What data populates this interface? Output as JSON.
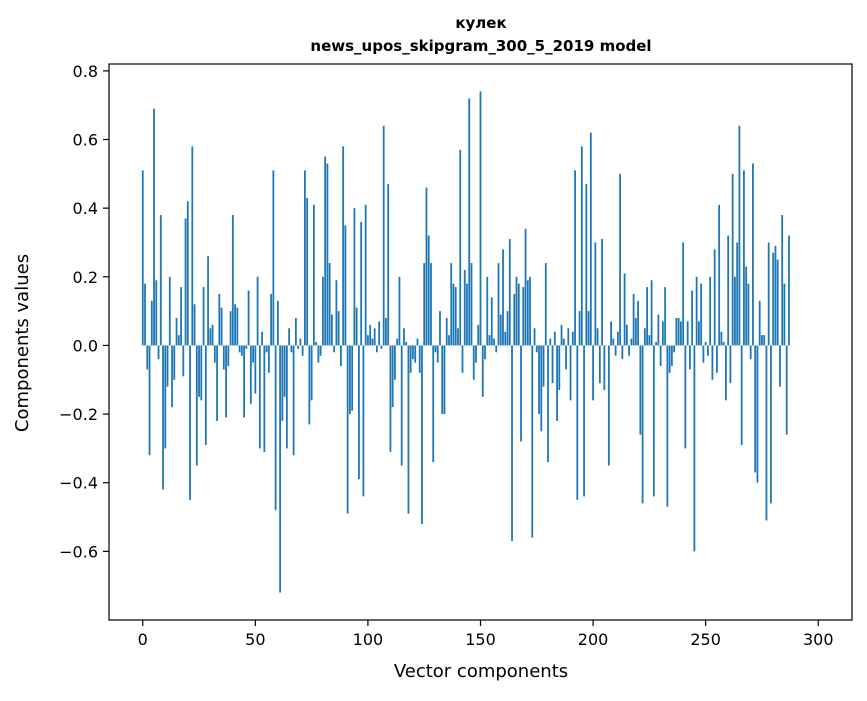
{
  "chart_data": {
    "type": "bar",
    "title": "кулек",
    "subtitle": "news_upos_skipgram_300_5_2019 model",
    "xlabel": "Vector components",
    "ylabel": "Components values",
    "xlim": [
      -15,
      315
    ],
    "ylim": [
      -0.8,
      0.82
    ],
    "x_ticks": [
      0,
      50,
      100,
      150,
      200,
      250,
      300
    ],
    "x_tick_labels": [
      "0",
      "50",
      "100",
      "150",
      "200",
      "250",
      "300"
    ],
    "y_ticks": [
      -0.6,
      -0.4,
      -0.2,
      0.0,
      0.2,
      0.4,
      0.6,
      0.8
    ],
    "y_tick_labels": [
      "−0.6",
      "−0.4",
      "−0.2",
      "0.0",
      "0.2",
      "0.4",
      "0.6",
      "0.8"
    ],
    "bar_color": "#1f77b4",
    "grid": false,
    "values": [
      0.51,
      0.18,
      -0.07,
      -0.32,
      0.13,
      0.69,
      0.19,
      -0.04,
      0.38,
      -0.42,
      -0.3,
      -0.12,
      0.2,
      -0.18,
      -0.1,
      0.08,
      0.03,
      0.17,
      -0.09,
      0.37,
      0.42,
      -0.45,
      0.58,
      0.12,
      -0.35,
      -0.15,
      -0.16,
      0.17,
      -0.29,
      0.26,
      0.05,
      0.06,
      -0.05,
      -0.22,
      0.15,
      0.11,
      -0.07,
      -0.21,
      -0.06,
      0.1,
      0.38,
      0.12,
      0.11,
      -0.02,
      -0.03,
      -0.21,
      -0.01,
      0.16,
      -0.17,
      -0.05,
      -0.14,
      0.2,
      -0.3,
      0.04,
      -0.31,
      -0.02,
      -0.08,
      0.15,
      0.51,
      -0.48,
      0.13,
      -0.72,
      -0.22,
      -0.15,
      -0.3,
      0.05,
      -0.02,
      -0.32,
      0.08,
      -0.01,
      0.02,
      -0.03,
      0.51,
      0.43,
      -0.23,
      -0.16,
      0.41,
      0.01,
      -0.05,
      -0.03,
      0.2,
      0.55,
      0.53,
      0.24,
      0.09,
      -0.02,
      0.19,
      0.1,
      -0.06,
      0.58,
      0.35,
      -0.49,
      -0.2,
      -0.19,
      0.4,
      0.11,
      -0.39,
      0.36,
      -0.44,
      0.41,
      0.03,
      0.06,
      0.02,
      0.05,
      -0.02,
      0.07,
      -0.01,
      0.64,
      0.08,
      0.47,
      -0.31,
      -0.18,
      -0.1,
      0.02,
      0.2,
      -0.35,
      0.05,
      0.01,
      -0.49,
      -0.08,
      -0.04,
      -0.05,
      0.02,
      -0.08,
      -0.52,
      0.24,
      0.46,
      0.32,
      0.24,
      -0.34,
      -0.02,
      -0.05,
      0.1,
      -0.2,
      -0.2,
      0.08,
      0.03,
      0.24,
      0.18,
      0.17,
      0.05,
      0.57,
      -0.08,
      0.22,
      0.18,
      0.72,
      0.24,
      -0.1,
      -0.05,
      0.06,
      0.74,
      -0.15,
      -0.04,
      0.2,
      0.03,
      0.14,
      0.02,
      -0.02,
      0.24,
      0.09,
      0.28,
      0.04,
      0.1,
      0.31,
      -0.57,
      0.15,
      0.2,
      0.18,
      -0.28,
      0.17,
      0.34,
      0.19,
      0.2,
      -0.56,
      0.05,
      -0.02,
      -0.2,
      -0.25,
      -0.12,
      0.24,
      -0.34,
      0.02,
      -0.11,
      0.04,
      -0.22,
      -0.13,
      0.06,
      0.02,
      -0.07,
      0.05,
      -0.16,
      0.04,
      0.51,
      -0.45,
      0.1,
      0.58,
      -0.44,
      0.47,
      0.1,
      0.62,
      -0.16,
      0.3,
      0.05,
      -0.11,
      0.31,
      -0.13,
      0.0,
      -0.35,
      0.07,
      0.02,
      -0.03,
      0.04,
      0.5,
      -0.04,
      0.21,
      0.06,
      -0.03,
      0.02,
      0.15,
      0.08,
      0.13,
      -0.26,
      -0.46,
      0.05,
      0.17,
      0.03,
      0.19,
      -0.44,
      0.01,
      0.09,
      -0.06,
      0.07,
      0.17,
      -0.47,
      -0.08,
      -0.06,
      -0.02,
      0.08,
      0.08,
      0.07,
      0.3,
      -0.3,
      0.07,
      -0.07,
      0.16,
      -0.6,
      0.2,
      0.07,
      0.18,
      -0.05,
      0.01,
      -0.03,
      0.2,
      -0.1,
      0.28,
      -0.08,
      0.41,
      0.04,
      0.01,
      -0.16,
      0.32,
      -0.11,
      0.5,
      0.2,
      0.3,
      0.64,
      -0.29,
      0.51,
      0.23,
      0.18,
      -0.04,
      0.53,
      -0.37,
      -0.4,
      0.13,
      0.03,
      0.03,
      -0.51,
      0.3,
      -0.46,
      0.27,
      0.29,
      0.25,
      -0.12,
      0.38,
      0.18,
      -0.26,
      0.32
    ]
  }
}
